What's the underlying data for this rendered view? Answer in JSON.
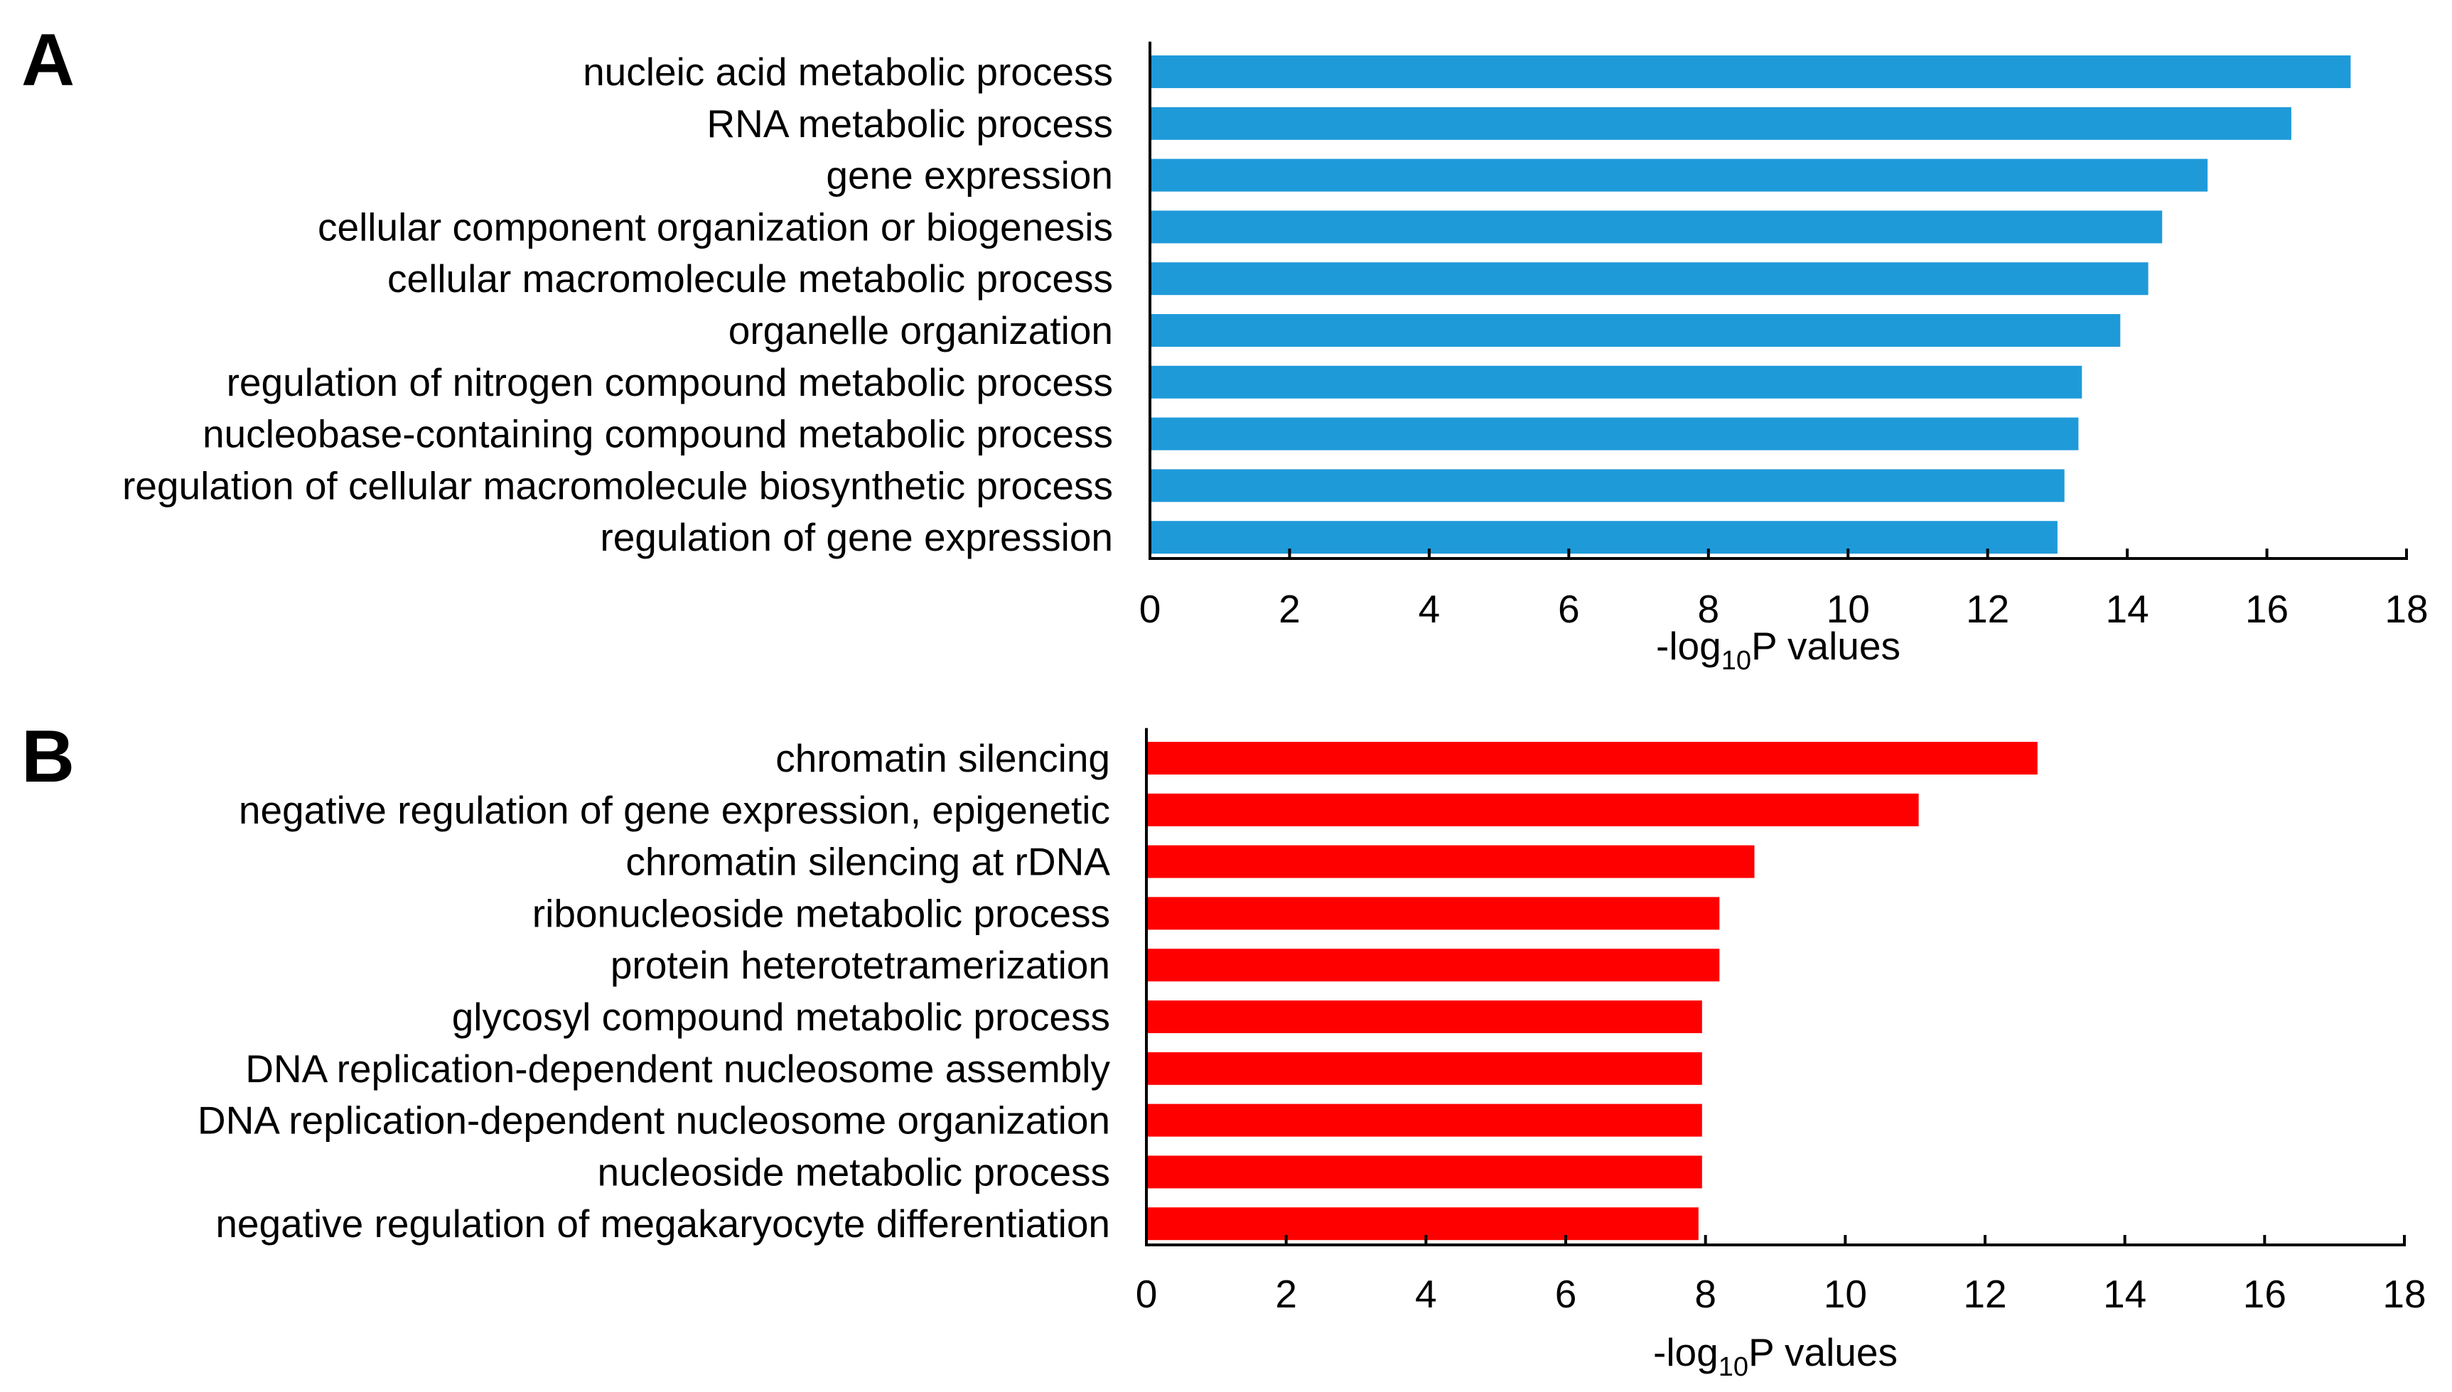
{
  "chart_data": [
    {
      "type": "bar",
      "orientation": "horizontal",
      "panel_label": "A",
      "bar_color": "#1f9ad9",
      "categories": [
        "nucleic acid metabolic process",
        "RNA metabolic process",
        "gene expression",
        "cellular component organization or biogenesis",
        "cellular macromolecule metabolic process",
        "organelle organization",
        "regulation of nitrogen compound metabolic process",
        "nucleobase-containing compound metabolic process",
        "regulation of cellular macromolecule biosynthetic process",
        "regulation of gene expression"
      ],
      "values": [
        17.2,
        16.35,
        15.15,
        14.5,
        14.3,
        13.9,
        13.35,
        13.3,
        13.1,
        13.0
      ],
      "xlabel_prefix": "-log",
      "xlabel_sub": "10",
      "xlabel_suffix": "P values",
      "xlim": [
        0,
        18
      ],
      "xticks": [
        "0",
        "2",
        "4",
        "6",
        "8",
        "10",
        "12",
        "14",
        "16",
        "18"
      ]
    },
    {
      "type": "bar",
      "orientation": "horizontal",
      "panel_label": "B",
      "bar_color": "#ff0000",
      "categories": [
        "chromatin silencing",
        "negative regulation of gene expression, epigenetic",
        "chromatin silencing at rDNA",
        "ribonucleoside metabolic process",
        "protein heterotetramerization",
        "glycosyl compound metabolic process",
        "DNA replication-dependent nucleosome assembly",
        "DNA replication-dependent nucleosome organization",
        "nucleoside metabolic process",
        "negative regulation of megakaryocyte differentiation"
      ],
      "values": [
        12.75,
        11.05,
        8.7,
        8.2,
        8.2,
        7.95,
        7.95,
        7.95,
        7.95,
        7.9
      ],
      "xlabel_prefix": "-log",
      "xlabel_sub": "10",
      "xlabel_suffix": "P values",
      "xlim": [
        0,
        18
      ],
      "xticks": [
        "0",
        "2",
        "4",
        "6",
        "8",
        "10",
        "12",
        "14",
        "16",
        "18"
      ]
    }
  ]
}
